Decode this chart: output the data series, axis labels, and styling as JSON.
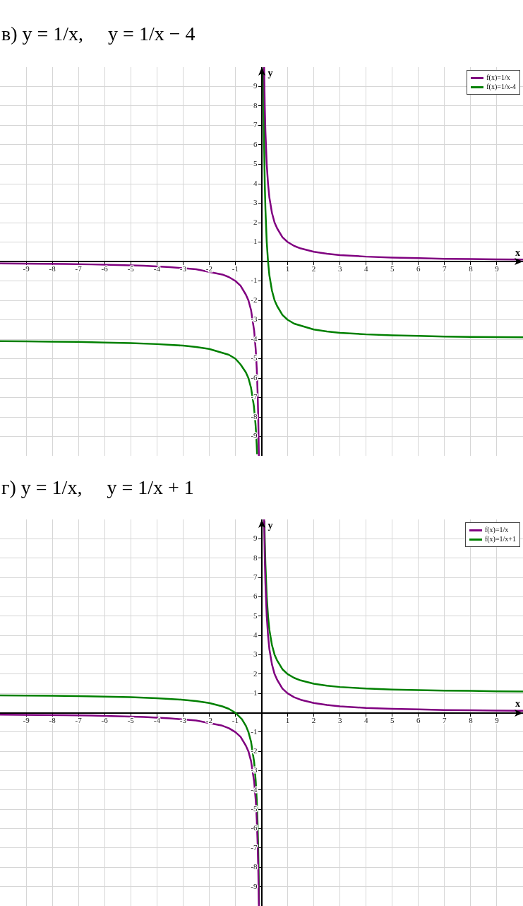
{
  "chart_data": [
    {
      "type": "line",
      "title": "в) y = 1/x,     y = 1/x − 4",
      "xlabel": "x",
      "ylabel": "y",
      "xlim": [
        -10,
        10
      ],
      "ylim": [
        -10,
        10
      ],
      "xticks": [
        -9,
        -8,
        -7,
        -6,
        -5,
        -4,
        -3,
        -2,
        -1,
        1,
        2,
        3,
        4,
        5,
        6,
        7,
        8,
        9
      ],
      "yticks": [
        -9,
        -8,
        -7,
        -6,
        -5,
        -4,
        -3,
        -2,
        -1,
        1,
        2,
        3,
        4,
        5,
        6,
        7,
        8,
        9
      ],
      "grid": true,
      "legend": "top right",
      "series": [
        {
          "name": "f(x)=1/x",
          "color": "#800080",
          "x": [
            -10,
            -8.5,
            -7.5,
            -6.5,
            -5.5,
            -4.5,
            -3.5,
            -2.5,
            -1.5,
            -1.25,
            -1,
            -0.8,
            -0.6,
            -0.5,
            -0.4,
            -0.28,
            -0.22,
            -0.18,
            -0.15,
            -0.125,
            -0.1,
            0,
            0.1,
            0.125,
            0.15,
            0.2,
            0.25,
            0.3,
            0.4,
            0.5,
            0.6,
            0.8,
            1,
            1.25,
            1.5,
            2,
            2.5,
            3,
            4,
            5,
            6,
            7,
            8,
            9,
            10
          ],
          "values": [
            -0.1,
            -0.12,
            -0.13,
            -0.15,
            -0.18,
            -0.22,
            -0.29,
            -0.4,
            -0.67,
            -0.8,
            -1,
            -1.25,
            -1.7,
            -2,
            -2.5,
            -3.57,
            -4.55,
            -5.56,
            -6.7,
            -8,
            -10,
            null,
            10,
            8,
            6.7,
            5,
            4,
            3.3,
            2.5,
            2,
            1.7,
            1.25,
            1,
            0.8,
            0.67,
            0.5,
            0.4,
            0.33,
            0.25,
            0.2,
            0.17,
            0.14,
            0.13,
            0.11,
            0.1
          ]
        },
        {
          "name": "f(x)=1/x-4",
          "color": "#008000",
          "x": [
            -10,
            -9,
            -8,
            -7,
            -6,
            -5,
            -4,
            -3,
            -2.5,
            -2,
            -1.5,
            -1.25,
            -1,
            -0.8,
            -0.6,
            -0.5,
            -0.4,
            -0.29,
            -0.23,
            -0.215,
            -0.185,
            -0.17,
            0,
            0.072,
            0.1,
            0.125,
            0.15,
            0.2,
            0.25,
            0.3,
            0.4,
            0.5,
            0.6,
            0.8,
            1,
            1.25,
            1.5,
            2,
            2.5,
            3,
            4,
            5,
            6,
            7,
            8,
            9,
            10
          ],
          "values": [
            -4.1,
            -4.11,
            -4.13,
            -4.14,
            -4.17,
            -4.2,
            -4.25,
            -4.33,
            -4.4,
            -4.5,
            -4.7,
            -4.8,
            -5,
            -5.3,
            -5.7,
            -6,
            -6.5,
            -7.45,
            -8.35,
            -8.65,
            -9.41,
            -9.88,
            null,
            9.9,
            6,
            4,
            2.7,
            1,
            0,
            -0.7,
            -1.5,
            -2,
            -2.3,
            -2.75,
            -3,
            -3.2,
            -3.3,
            -3.5,
            -3.6,
            -3.67,
            -3.75,
            -3.8,
            -3.83,
            -3.86,
            -3.88,
            -3.89,
            -3.9
          ]
        }
      ]
    },
    {
      "type": "line",
      "title": "г) y = 1/x,     y = 1/x + 1",
      "xlabel": "x",
      "ylabel": "y",
      "xlim": [
        -10,
        10
      ],
      "ylim": [
        -10,
        10
      ],
      "xticks": [
        -9,
        -8,
        -7,
        -6,
        -5,
        -4,
        -3,
        -2,
        -1,
        1,
        2,
        3,
        4,
        5,
        6,
        7,
        8,
        9
      ],
      "yticks": [
        -9,
        -8,
        -7,
        -6,
        -5,
        -4,
        -3,
        -2,
        -1,
        1,
        2,
        3,
        4,
        5,
        6,
        7,
        8,
        9
      ],
      "grid": true,
      "legend": "top right",
      "series": [
        {
          "name": "f(x)=1/x",
          "color": "#800080",
          "x": [
            -10,
            -8.5,
            -7.5,
            -6.5,
            -5.5,
            -4.5,
            -3.5,
            -2.5,
            -1.5,
            -1.25,
            -1,
            -0.8,
            -0.6,
            -0.5,
            -0.4,
            -0.28,
            -0.22,
            -0.18,
            -0.15,
            -0.125,
            -0.1,
            0,
            0.1,
            0.125,
            0.15,
            0.2,
            0.25,
            0.3,
            0.4,
            0.5,
            0.6,
            0.8,
            1,
            1.25,
            1.5,
            2,
            2.5,
            3,
            4,
            5,
            6,
            7,
            8,
            9,
            10
          ],
          "values": [
            -0.1,
            -0.12,
            -0.13,
            -0.15,
            -0.18,
            -0.22,
            -0.29,
            -0.4,
            -0.67,
            -0.8,
            -1,
            -1.25,
            -1.7,
            -2,
            -2.5,
            -3.57,
            -4.55,
            -5.56,
            -6.7,
            -8,
            -10,
            null,
            10,
            8,
            6.7,
            5,
            4,
            3.3,
            2.5,
            2,
            1.7,
            1.25,
            1,
            0.8,
            0.67,
            0.5,
            0.4,
            0.33,
            0.25,
            0.2,
            0.17,
            0.14,
            0.13,
            0.11,
            0.1
          ]
        },
        {
          "name": "f(x)=1/x+1",
          "color": "#008000",
          "x": [
            -10,
            -9,
            -8,
            -7,
            -6,
            -5,
            -4,
            -3,
            -2.5,
            -2,
            -1.5,
            -1.25,
            -1,
            -0.75,
            -0.6,
            -0.5,
            -0.4,
            -0.28,
            -0.22,
            -0.18,
            -0.15,
            -0.125,
            -0.1,
            -0.092,
            0,
            0.112,
            0.125,
            0.15,
            0.2,
            0.25,
            0.3,
            0.4,
            0.5,
            0.6,
            0.8,
            1,
            1.25,
            1.5,
            2,
            2.5,
            3,
            4,
            5,
            6,
            7,
            8,
            9,
            10
          ],
          "values": [
            0.9,
            0.89,
            0.88,
            0.86,
            0.83,
            0.8,
            0.75,
            0.67,
            0.6,
            0.5,
            0.33,
            0.2,
            0,
            -0.33,
            -0.67,
            -1,
            -1.5,
            -2.57,
            -3.55,
            -4.56,
            -5.7,
            -7,
            -9,
            -9.9,
            null,
            9.9,
            9,
            7.7,
            6,
            5,
            4.3,
            3.5,
            3,
            2.7,
            2.25,
            2,
            1.8,
            1.67,
            1.5,
            1.4,
            1.33,
            1.25,
            1.2,
            1.17,
            1.14,
            1.13,
            1.11,
            1.1
          ]
        }
      ]
    }
  ]
}
